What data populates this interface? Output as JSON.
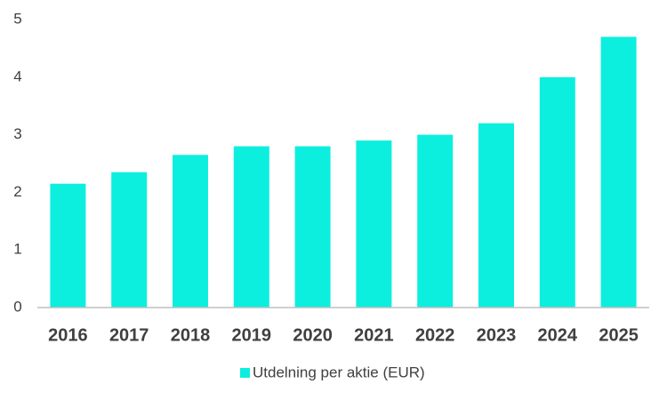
{
  "chart_data": {
    "type": "bar",
    "categories": [
      "2016",
      "2017",
      "2018",
      "2019",
      "2020",
      "2021",
      "2022",
      "2023",
      "2024",
      "2025"
    ],
    "series": [
      {
        "name": "Utdelning per aktie (EUR)",
        "color": "#0cefdf",
        "values": [
          2.15,
          2.35,
          2.65,
          2.8,
          2.8,
          2.9,
          3.0,
          3.2,
          4.0,
          4.7
        ]
      }
    ],
    "ylim": [
      0,
      5
    ],
    "yticks": [
      0,
      1,
      2,
      3,
      4,
      5
    ],
    "grid": false,
    "legend": "bottom"
  }
}
